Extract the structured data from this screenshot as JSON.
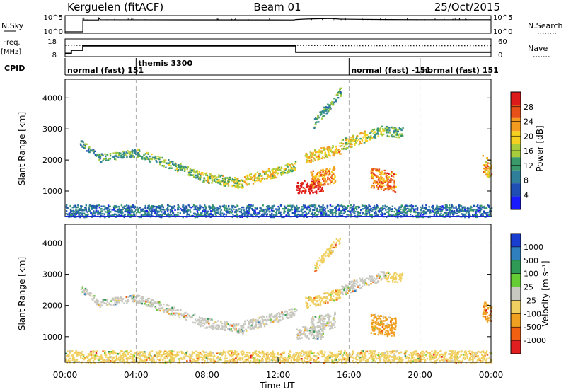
{
  "header": {
    "station": "Kerguelen (fitACF)",
    "beam": "Beam 01",
    "date": "25/Oct/2015"
  },
  "colors": {
    "scatter_power": [
      "#1a1aff",
      "#1f4fb4",
      "#2f7f9a",
      "#3a9a6a",
      "#a8cc3c",
      "#f5d020",
      "#f59a20",
      "#e8501a",
      "#dd1a1a"
    ],
    "scatter_velocity": [
      "#1a3ed0",
      "#2f7fbf",
      "#2e9a55",
      "#66cc33",
      "#c8c8c0",
      "#f0d060",
      "#f0a020",
      "#f06010",
      "#e02020"
    ]
  },
  "chart_data": [
    {
      "type": "line",
      "name": "noise-panel",
      "left_label": "N.Sky",
      "right_label": "N.Search",
      "y_ticks_left": [
        "10^5",
        "10^0"
      ],
      "y_ticks_right": [
        "10^5",
        "10^0"
      ],
      "series": [
        {
          "x": [
            0.0,
            1.0,
            1.0,
            1.9,
            1.9,
            2.0,
            12.9,
            13.0,
            13.5,
            14.0,
            15.0,
            15.5,
            16.0,
            18.0,
            20.0,
            24.0
          ],
          "y": [
            0.0,
            0.0,
            4.2,
            4.2,
            4.9,
            4.3,
            4.2,
            4.35,
            4.5,
            4.6,
            4.7,
            4.5,
            4.45,
            4.35,
            4.3,
            4.3
          ]
        }
      ]
    },
    {
      "type": "line",
      "name": "frequency-panel",
      "left_label": "Freq.",
      "left_unit": "[MHz]",
      "right_label": "Nave",
      "y_ticks_left": [
        "18",
        "8"
      ],
      "y_ticks_right": [
        "60",
        "0"
      ],
      "series": [
        {
          "name": "Freq.",
          "x": [
            0.0,
            0.35,
            0.35,
            1.0,
            1.0,
            13.0,
            13.0,
            24.0
          ],
          "y": [
            9.3,
            9.3,
            11.5,
            11.5,
            14.6,
            14.6,
            10.1,
            10.1
          ]
        },
        {
          "name": "Nave",
          "x": [
            0.0,
            1.0,
            13.0,
            16.0,
            24.0
          ],
          "y": [
            42,
            42,
            42,
            40,
            40
          ]
        }
      ]
    },
    {
      "type": "table",
      "name": "cpid-strip",
      "label": "CPID",
      "segments": [
        {
          "text": "normal (fast)  151",
          "start": 0.0
        },
        {
          "text": "themis 3300",
          "start": 4.0
        },
        {
          "text": "normal (fast)  -151",
          "start": 16.0
        },
        {
          "text": "normal (fast)  151",
          "start": 20.0
        }
      ]
    },
    {
      "type": "heatmap",
      "name": "power",
      "ylabel": "Slant Range [km]",
      "xlabel": "",
      "y_ticks": [
        1000,
        2000,
        3000,
        4000
      ],
      "ylim": [
        180,
        4600
      ],
      "xlim": [
        0,
        24
      ],
      "colorbar_label": "Power [dB]",
      "colorbar_ticks": [
        "4",
        "8",
        "12",
        "16",
        "20",
        "24",
        "28"
      ],
      "colorbar_range": [
        0,
        30
      ],
      "regions": [
        {
          "t": [
            0.8,
            2.0
          ],
          "r": [
            2600,
            2050
          ],
          "width": 110,
          "level": 8
        },
        {
          "t": [
            2.0,
            4.0
          ],
          "r": [
            2100,
            2250
          ],
          "width": 120,
          "level": 10
        },
        {
          "t": [
            4.0,
            7.5
          ],
          "r": [
            2250,
            1550
          ],
          "width": 140,
          "level": 11
        },
        {
          "t": [
            7.5,
            10.0
          ],
          "r": [
            1500,
            1250
          ],
          "width": 160,
          "level": 14
        },
        {
          "t": [
            10.0,
            12.0
          ],
          "r": [
            1350,
            1650
          ],
          "width": 170,
          "level": 16
        },
        {
          "t": [
            12.0,
            13.0
          ],
          "r": [
            1650,
            1850
          ],
          "width": 150,
          "level": 14
        },
        {
          "t": [
            13.0,
            14.5
          ],
          "r": [
            1150,
            1150
          ],
          "width": 200,
          "level": 28
        },
        {
          "t": [
            13.8,
            15.2
          ],
          "r": [
            1400,
            1550
          ],
          "width": 260,
          "level": 20
        },
        {
          "t": [
            13.5,
            15.5
          ],
          "r": [
            2100,
            2400
          ],
          "width": 180,
          "level": 17
        },
        {
          "t": [
            15.5,
            17.0
          ],
          "r": [
            2500,
            2800
          ],
          "width": 180,
          "level": 15
        },
        {
          "t": [
            17.0,
            18.0
          ],
          "r": [
            2800,
            3000
          ],
          "width": 150,
          "level": 12
        },
        {
          "t": [
            17.2,
            18.6
          ],
          "r": [
            1450,
            1300
          ],
          "width": 320,
          "level": 21
        },
        {
          "t": [
            18.0,
            19.0
          ],
          "r": [
            2950,
            2900
          ],
          "width": 160,
          "level": 10
        },
        {
          "t": [
            14.0,
            15.5
          ],
          "r": [
            3200,
            4200
          ],
          "width": 150,
          "level": 9
        },
        {
          "t": [
            23.5,
            24.0
          ],
          "r": [
            1900,
            1700
          ],
          "width": 300,
          "level": 18
        },
        {
          "t": [
            0.0,
            24.0
          ],
          "r": [
            350,
            350
          ],
          "width": 220,
          "level": 6
        }
      ]
    },
    {
      "type": "heatmap",
      "name": "velocity",
      "ylabel": "Slant Range [km]",
      "xlabel": "Time UT",
      "x_ticks": [
        "00:00",
        "04:00",
        "08:00",
        "12:00",
        "16:00",
        "20:00",
        "00:00"
      ],
      "y_ticks": [
        1000,
        2000,
        3000,
        4000
      ],
      "ylim": [
        180,
        4600
      ],
      "xlim": [
        0,
        24
      ],
      "colorbar_label": "Velocity [m s⁻¹]",
      "colorbar_ticks": [
        "1000",
        "500",
        "100",
        "25",
        "-25",
        "-100",
        "-500",
        "-1000"
      ],
      "regions": [
        {
          "t": [
            0.8,
            2.0
          ],
          "r": [
            2600,
            2050
          ],
          "width": 110,
          "level": 4
        },
        {
          "t": [
            2.0,
            4.0
          ],
          "r": [
            2100,
            2250
          ],
          "width": 120,
          "level": 4
        },
        {
          "t": [
            4.0,
            7.5
          ],
          "r": [
            2250,
            1550
          ],
          "width": 140,
          "level": 4
        },
        {
          "t": [
            7.5,
            10.0
          ],
          "r": [
            1500,
            1250
          ],
          "width": 160,
          "level": 4
        },
        {
          "t": [
            10.0,
            12.0
          ],
          "r": [
            1350,
            1650
          ],
          "width": 170,
          "level": 4
        },
        {
          "t": [
            12.0,
            13.0
          ],
          "r": [
            1650,
            1850
          ],
          "width": 150,
          "level": 4
        },
        {
          "t": [
            13.0,
            14.5
          ],
          "r": [
            1150,
            1150
          ],
          "width": 200,
          "level": 4
        },
        {
          "t": [
            13.8,
            15.2
          ],
          "r": [
            1400,
            1550
          ],
          "width": 260,
          "level": 4
        },
        {
          "t": [
            13.5,
            15.5
          ],
          "r": [
            2100,
            2400
          ],
          "width": 180,
          "level": 5
        },
        {
          "t": [
            15.5,
            17.0
          ],
          "r": [
            2500,
            2800
          ],
          "width": 180,
          "level": 4
        },
        {
          "t": [
            17.0,
            18.0
          ],
          "r": [
            2800,
            3000
          ],
          "width": 150,
          "level": 4
        },
        {
          "t": [
            17.2,
            18.6
          ],
          "r": [
            1450,
            1300
          ],
          "width": 320,
          "level": 6
        },
        {
          "t": [
            18.0,
            19.0
          ],
          "r": [
            2950,
            2900
          ],
          "width": 160,
          "level": 5
        },
        {
          "t": [
            14.0,
            15.5
          ],
          "r": [
            3200,
            4200
          ],
          "width": 150,
          "level": 5
        },
        {
          "t": [
            23.5,
            24.0
          ],
          "r": [
            1900,
            1700
          ],
          "width": 300,
          "level": 6
        },
        {
          "t": [
            0.0,
            24.0
          ],
          "r": [
            350,
            350
          ],
          "width": 220,
          "level": 5
        }
      ]
    }
  ]
}
